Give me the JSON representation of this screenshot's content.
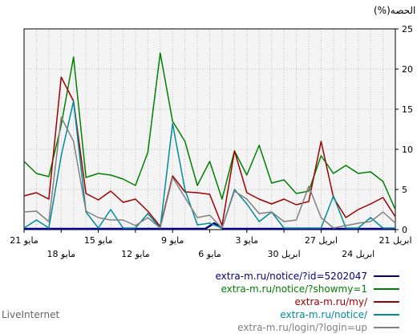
{
  "footer": "LiveInternet",
  "chart_data": {
    "type": "line",
    "ylabel": "الحصه(%)",
    "ylim": [
      0,
      25
    ],
    "yticks": [
      0,
      5,
      10,
      15,
      20,
      25
    ],
    "grid": true,
    "x_tick_labels_row1": [
      "21 مايو",
      "15 مايو",
      "9 مايو",
      "3 مايو",
      "27 ابريل",
      "21 ابريل"
    ],
    "x_tick_labels_row2": [
      "18 مايو",
      "12 مايو",
      "6 مايو",
      "30 ابريل",
      "24 ابريل"
    ],
    "series": [
      {
        "name": "extra-m.ru/notice/?id=5202047",
        "color": "#000080",
        "values": [
          0.1,
          0.1,
          0.1,
          0.1,
          0.1,
          0.1,
          0.1,
          0.1,
          0.1,
          0.1,
          0.1,
          0.1,
          0.1,
          0.1,
          0.1,
          0.1,
          0.1,
          0.1,
          0.1,
          0.1,
          0.1,
          0.8,
          0.1,
          0.1,
          0.1,
          0.1,
          0.1,
          0.1,
          0.1,
          0.1,
          0.1,
          0.1,
          0.1,
          0.1,
          0.1,
          0.1,
          0.1,
          0.1,
          0.1,
          0.1,
          0.1,
          0.1
        ]
      },
      {
        "name": "extra-m.ru/notice/?showmy=1",
        "color": "#008000",
        "values": [
          8.5,
          7.0,
          6.6,
          13.0,
          21.5,
          6.5,
          7.0,
          6.8,
          6.3,
          5.5,
          9.6,
          22.0,
          13.5,
          11.0,
          5.5,
          8.5,
          3.8,
          9.8,
          6.8,
          10.5,
          5.8,
          6.2,
          4.5,
          4.8,
          9.2,
          7.0,
          8.0,
          7.0,
          7.2,
          6.0,
          2.5
        ]
      },
      {
        "name": "extra-m.ru/my/",
        "color": "#a00000",
        "values": [
          4.2,
          4.6,
          3.8,
          19.0,
          16.0,
          4.5,
          3.7,
          4.8,
          3.4,
          3.8,
          2.3,
          0.4,
          6.7,
          4.7,
          4.6,
          4.4,
          0.5,
          9.8,
          4.6,
          3.8,
          3.2,
          3.8,
          3.1,
          3.5,
          11.0,
          4.0,
          1.5,
          2.5,
          3.2,
          4.0,
          1.6
        ]
      },
      {
        "name": "extra-m.ru/notice/",
        "color": "#008b9a",
        "values": [
          0.2,
          1.2,
          0.2,
          9.2,
          16.0,
          2.2,
          0.2,
          2.5,
          0.2,
          0.2,
          2.0,
          0.2,
          13.2,
          5.0,
          0.6,
          0.8,
          0.2,
          5.0,
          3.2,
          1.0,
          2.2,
          0.2,
          0.2,
          0.2,
          0.2,
          4.2,
          0.2,
          0.2,
          1.5,
          0.2,
          0.2
        ]
      },
      {
        "name": "extra-m.ru/login/?login=up",
        "color": "#808080",
        "values": [
          2.2,
          2.3,
          1.0,
          14.0,
          11.0,
          2.3,
          1.5,
          1.2,
          1.2,
          0.5,
          1.5,
          0.2,
          6.5,
          4.0,
          1.5,
          1.8,
          0.2,
          4.8,
          3.8,
          2.0,
          2.2,
          1.0,
          1.2,
          5.4,
          1.5,
          0.2,
          0.5,
          0.8,
          1.0,
          2.2,
          0.8
        ]
      }
    ]
  }
}
